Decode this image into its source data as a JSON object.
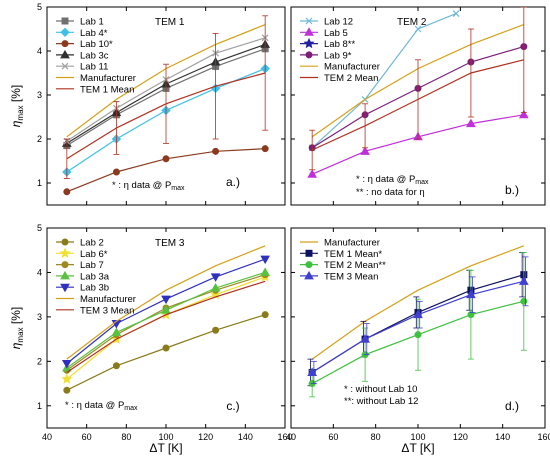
{
  "y_axis_label": "η",
  "y_axis_sub": "max",
  "y_axis_unit": "[%]",
  "x_axis_label": "ΔT [K]",
  "chart_data": [
    {
      "type": "line",
      "panel_label": "a.)",
      "title": "TEM 1",
      "xlim": [
        40,
        160
      ],
      "ylim": [
        0.5,
        5
      ],
      "x_ticks": [],
      "y_ticks": [
        "1",
        "2",
        "3",
        "4",
        "5"
      ],
      "legend_placement": "top-left",
      "note": "* : η data @ Pmax",
      "notes": [
        "* : η data @ P",
        "max"
      ],
      "series": [
        {
          "name": "Lab 1",
          "color": "#707070",
          "marker": "square",
          "x": [
            50,
            75,
            100,
            125,
            150
          ],
          "y": [
            1.85,
            2.55,
            3.15,
            3.65,
            4.05
          ]
        },
        {
          "name": "Lab 4*",
          "color": "#3fc0e8",
          "marker": "diamond",
          "x": [
            50,
            75,
            100,
            125,
            150
          ],
          "y": [
            1.25,
            2.0,
            2.65,
            3.15,
            3.6
          ]
        },
        {
          "name": "Lab 10*",
          "color": "#8b3a1e",
          "marker": "circle",
          "x": [
            50,
            75,
            100,
            125,
            150
          ],
          "y": [
            0.8,
            1.25,
            1.55,
            1.72,
            1.78
          ]
        },
        {
          "name": "Lab 3c",
          "color": "#303030",
          "marker": "triangle",
          "x": [
            50,
            75,
            100,
            125,
            150
          ],
          "y": [
            1.9,
            2.6,
            3.25,
            3.75,
            4.15
          ]
        },
        {
          "name": "Lab 11",
          "color": "#a0a0a0",
          "marker": "cross",
          "x": [
            50,
            75,
            100,
            125,
            150
          ],
          "y": [
            1.95,
            2.7,
            3.35,
            3.95,
            4.3
          ]
        },
        {
          "name": "Manufacturer",
          "color": "#d4a017",
          "marker": "none",
          "x": [
            50,
            75,
            100,
            125,
            150
          ],
          "y": [
            2.05,
            2.9,
            3.6,
            4.15,
            4.6
          ]
        },
        {
          "name": "TEM 1 Mean",
          "color": "#b03020",
          "marker": "none",
          "x": [
            50,
            75,
            100,
            125,
            150
          ],
          "y": [
            1.55,
            2.25,
            2.8,
            3.2,
            3.5
          ],
          "err": [
            0.45,
            0.6,
            0.9,
            1.2,
            1.3
          ]
        }
      ]
    },
    {
      "type": "line",
      "panel_label": "b.)",
      "title": "TEM 2",
      "xlim": [
        40,
        160
      ],
      "ylim": [
        0.5,
        5
      ],
      "x_ticks": [],
      "y_ticks": [],
      "legend_placement": "top-left",
      "note": "* : η data @ Pmax ** : no data for η",
      "notes": [
        "* : η data @ P",
        "max",
        "** : no data for η"
      ],
      "series": [
        {
          "name": "Lab 12",
          "color": "#6fb8d8",
          "marker": "cross",
          "x": [
            50,
            75,
            100,
            118
          ],
          "y": [
            1.8,
            2.9,
            4.5,
            4.85
          ]
        },
        {
          "name": "Lab 5",
          "color": "#c030d8",
          "marker": "triangle",
          "x": [
            50,
            75,
            100,
            125,
            150
          ],
          "y": [
            1.2,
            1.72,
            2.05,
            2.35,
            2.55
          ]
        },
        {
          "name": "Lab 8**",
          "color": "#2020a0",
          "marker": "star",
          "x": [],
          "y": []
        },
        {
          "name": "Lab 9*",
          "color": "#7a1f7a",
          "marker": "circle",
          "x": [
            50,
            75,
            100,
            125,
            150
          ],
          "y": [
            1.8,
            2.55,
            3.15,
            3.75,
            4.1
          ]
        },
        {
          "name": "Manufacturer",
          "color": "#d4a017",
          "marker": "none",
          "x": [
            50,
            75,
            100,
            125,
            150
          ],
          "y": [
            2.05,
            2.9,
            3.6,
            4.15,
            4.6
          ]
        },
        {
          "name": "TEM 2 Mean",
          "color": "#b03020",
          "marker": "none",
          "x": [
            50,
            75,
            100,
            125,
            150
          ],
          "y": [
            1.75,
            2.3,
            2.9,
            3.5,
            3.8
          ],
          "err": [
            0.45,
            0.5,
            0.9,
            1.0,
            1.2
          ]
        }
      ]
    },
    {
      "type": "line",
      "panel_label": "c.)",
      "title": "TEM 3",
      "xlim": [
        40,
        160
      ],
      "ylim": [
        0.5,
        5
      ],
      "x_ticks": [
        "40",
        "60",
        "80",
        "100",
        "120",
        "140",
        "160"
      ],
      "y_ticks": [
        "1",
        "2",
        "3",
        "4",
        "5"
      ],
      "legend_placement": "top-left",
      "note": "* : η data @ Pmax",
      "notes": [
        "* : η data @ P",
        "max"
      ],
      "series": [
        {
          "name": "Lab 2",
          "color": "#8a7a1a",
          "marker": "circle",
          "x": [
            50,
            75,
            100,
            125,
            150
          ],
          "y": [
            1.35,
            1.9,
            2.3,
            2.7,
            3.05
          ]
        },
        {
          "name": "Lab 6*",
          "color": "#f0e030",
          "marker": "star",
          "x": [
            50,
            75,
            100,
            125,
            150
          ],
          "y": [
            1.6,
            2.5,
            3.05,
            3.5,
            3.9
          ]
        },
        {
          "name": "Lab 7",
          "color": "#9a8a20",
          "marker": "circle",
          "x": [
            50,
            75,
            100,
            125,
            150
          ],
          "y": [
            1.8,
            2.6,
            3.2,
            3.6,
            3.95
          ]
        },
        {
          "name": "Lab 3a",
          "color": "#5ac040",
          "marker": "triangle",
          "x": [
            50,
            75,
            100,
            125,
            150
          ],
          "y": [
            1.85,
            2.65,
            3.15,
            3.65,
            4.0
          ]
        },
        {
          "name": "Lab 3b",
          "color": "#3030c0",
          "marker": "triangle-down",
          "x": [
            50,
            75,
            100,
            125,
            150
          ],
          "y": [
            1.95,
            2.85,
            3.4,
            3.9,
            4.3
          ]
        },
        {
          "name": "Manufacturer",
          "color": "#d4a017",
          "marker": "none",
          "x": [
            50,
            75,
            100,
            125,
            150
          ],
          "y": [
            2.05,
            2.9,
            3.6,
            4.15,
            4.6
          ]
        },
        {
          "name": "TEM 3 Mean",
          "color": "#b03020",
          "marker": "none",
          "x": [
            50,
            75,
            100,
            125,
            150
          ],
          "y": [
            1.75,
            2.5,
            3.05,
            3.45,
            3.8
          ]
        }
      ]
    },
    {
      "type": "line",
      "panel_label": "d.)",
      "title": "",
      "xlim": [
        40,
        160
      ],
      "ylim": [
        0.5,
        5
      ],
      "x_ticks": [
        "40",
        "60",
        "80",
        "100",
        "120",
        "140",
        "160"
      ],
      "y_ticks": [],
      "legend_placement": "top-left",
      "note": "* : without Lab 10 ** : without Lab 12",
      "notes": [
        "* : without Lab 10",
        "**: without Lab 12"
      ],
      "series": [
        {
          "name": "Manufacturer",
          "color": "#d4a017",
          "marker": "none",
          "x": [
            50,
            75,
            100,
            125,
            150
          ],
          "y": [
            2.05,
            2.9,
            3.6,
            4.15,
            4.6
          ]
        },
        {
          "name": "TEM 1 Mean*",
          "color": "#101060",
          "marker": "square",
          "x": [
            50,
            75,
            100,
            125,
            150
          ],
          "y": [
            1.75,
            2.5,
            3.1,
            3.6,
            3.95
          ],
          "err": [
            0.3,
            0.4,
            0.35,
            0.45,
            0.5
          ]
        },
        {
          "name": "TEM 2 Mean**",
          "color": "#40c040",
          "marker": "circle",
          "x": [
            50,
            75,
            100,
            125,
            150
          ],
          "y": [
            1.5,
            2.15,
            2.6,
            3.05,
            3.35
          ],
          "err": [
            0.3,
            0.6,
            0.8,
            1.0,
            1.1
          ]
        },
        {
          "name": "TEM 3 Mean",
          "color": "#4040d0",
          "marker": "triangle",
          "x": [
            50,
            75,
            100,
            125,
            150
          ],
          "y": [
            1.75,
            2.5,
            3.05,
            3.5,
            3.8
          ],
          "err": [
            0.25,
            0.35,
            0.3,
            0.4,
            0.55
          ]
        }
      ]
    }
  ]
}
